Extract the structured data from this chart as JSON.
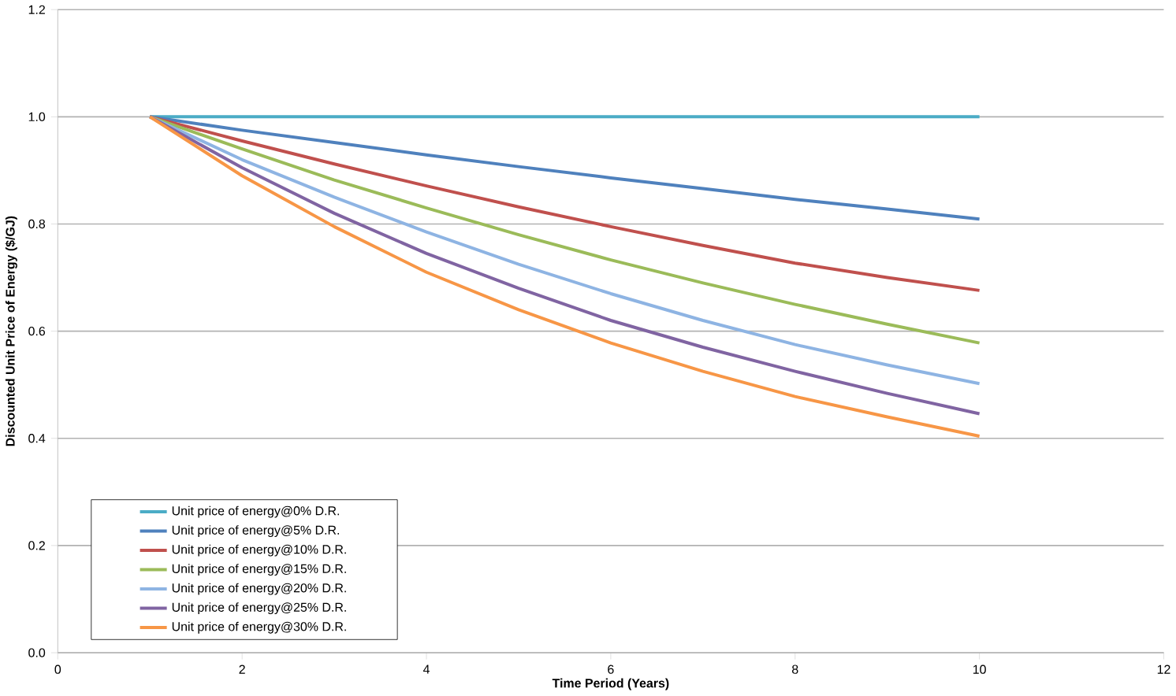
{
  "chart_data": {
    "type": "line",
    "xlabel": "Time Period (Years)",
    "ylabel": "Discounted Unit Price of Energy ($/GJ)",
    "x": [
      1,
      2,
      3,
      4,
      5,
      6,
      7,
      8,
      9,
      10
    ],
    "xlim": [
      0,
      12
    ],
    "xticks": [
      0,
      2,
      4,
      6,
      8,
      10,
      12
    ],
    "ylim": [
      0,
      1.2
    ],
    "yticks": [
      {
        "value": 0,
        "label": "0.0"
      },
      {
        "value": 0.2,
        "label": "0.2"
      },
      {
        "value": 0.4,
        "label": "0.4"
      },
      {
        "value": 0.6,
        "label": "0.6"
      },
      {
        "value": 0.8,
        "label": "0.8"
      },
      {
        "value": 1.0,
        "label": "1.0"
      },
      {
        "value": 1.2,
        "label": "1.2"
      }
    ],
    "grid": "y",
    "legend": "bottom left",
    "marker": "none",
    "line_style": "solid",
    "series": [
      {
        "name": "Unit price of energy@0% D.R.",
        "color": "#4bacc6",
        "values": [
          1,
          1,
          1,
          1,
          1,
          1,
          1,
          1,
          1,
          1
        ]
      },
      {
        "name": "Unit price of energy@5% D.R.",
        "color": "#4f81bd",
        "values": [
          1,
          0.975,
          0.952,
          0.929,
          0.907,
          0.886,
          0.866,
          0.846,
          0.828,
          0.809
        ]
      },
      {
        "name": "Unit price of energy@10% D.R.",
        "color": "#c0504d",
        "values": [
          1,
          0.955,
          0.912,
          0.871,
          0.832,
          0.795,
          0.76,
          0.727,
          0.7,
          0.676
        ]
      },
      {
        "name": "Unit price of energy@15% D.R.",
        "color": "#9bbb59",
        "values": [
          1,
          0.94,
          0.882,
          0.83,
          0.78,
          0.733,
          0.69,
          0.65,
          0.613,
          0.578
        ]
      },
      {
        "name": "Unit price of energy@20% D.R.",
        "color": "#8eb4e3",
        "values": [
          1,
          0.92,
          0.85,
          0.785,
          0.725,
          0.67,
          0.62,
          0.575,
          0.537,
          0.502
        ]
      },
      {
        "name": "Unit price of energy@25% D.R.",
        "color": "#8064a2",
        "values": [
          1,
          0.905,
          0.82,
          0.745,
          0.68,
          0.62,
          0.57,
          0.525,
          0.484,
          0.446
        ]
      },
      {
        "name": "Unit price of energy@30% D.R.",
        "color": "#f79646",
        "values": [
          1,
          0.89,
          0.795,
          0.71,
          0.64,
          0.578,
          0.525,
          0.478,
          0.44,
          0.404
        ]
      }
    ]
  }
}
